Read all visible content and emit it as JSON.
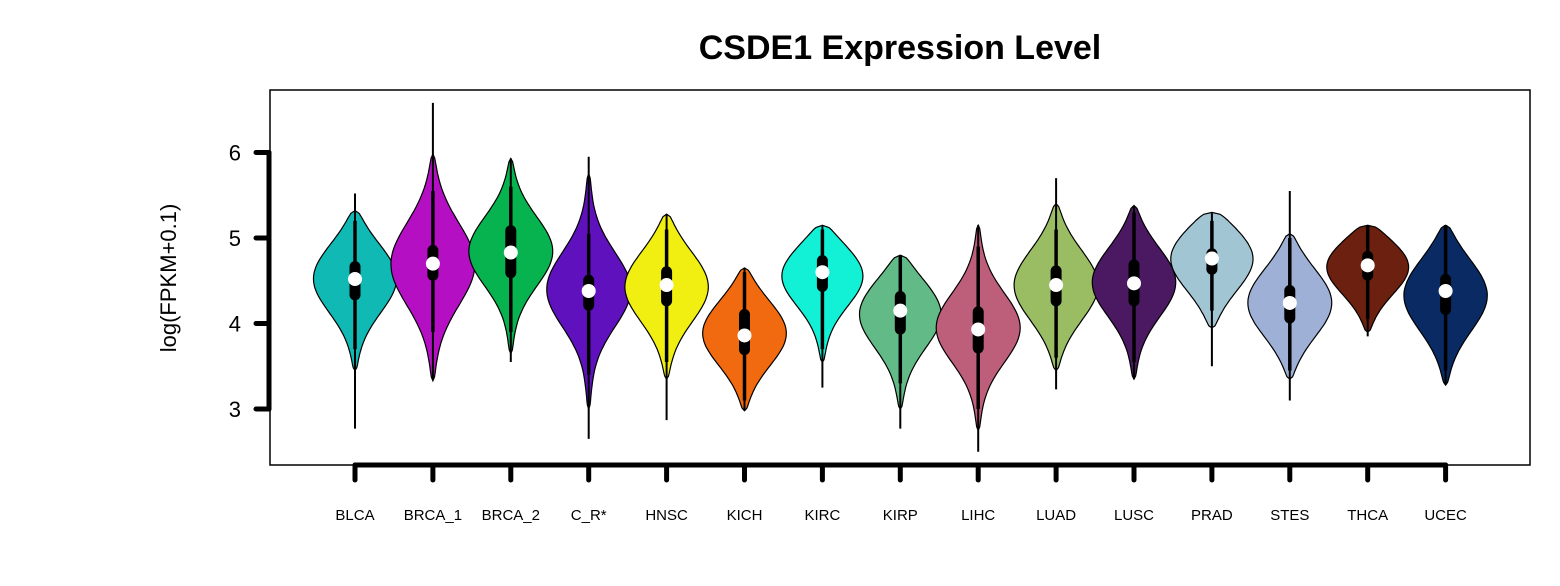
{
  "chart_data": {
    "type": "violin",
    "title": "CSDE1 Expression Level",
    "xlabel": "",
    "ylabel": "log(FPKM+0.1)",
    "ylim": [
      2.35,
      6.75
    ],
    "yticks": [
      3,
      4,
      5,
      6
    ],
    "categories": [
      "BLCA",
      "BRCA_1",
      "BRCA_2",
      "C_R*",
      "HNSC",
      "KICH",
      "KIRC",
      "KIRP",
      "LIHC",
      "LUAD",
      "LUSC",
      "PRAD",
      "STES",
      "THCA",
      "UCEC"
    ],
    "series": [
      {
        "category": "BLCA",
        "color": "#10b9b4",
        "min": 2.77,
        "max": 5.52,
        "q1": 4.27,
        "median": 4.52,
        "q3": 4.73,
        "whisker_low": 3.7,
        "whisker_high": 5.2,
        "violin_low": 3.45,
        "violin_high": 5.32,
        "peak": 4.55,
        "peak_halfwidth": 0.42
      },
      {
        "category": "BRCA_1",
        "color": "#b40fc3",
        "min": 3.35,
        "max": 6.58,
        "q1": 4.5,
        "median": 4.7,
        "q3": 4.92,
        "whisker_low": 3.9,
        "whisker_high": 5.55,
        "violin_low": 3.33,
        "violin_high": 5.98,
        "peak": 4.7,
        "peak_halfwidth": 0.5
      },
      {
        "category": "BRCA_2",
        "color": "#07b34f",
        "min": 3.55,
        "max": 5.93,
        "q1": 4.53,
        "median": 4.83,
        "q3": 5.15,
        "whisker_low": 3.9,
        "whisker_high": 5.6,
        "violin_low": 3.65,
        "violin_high": 5.93,
        "peak": 4.85,
        "peak_halfwidth": 0.42
      },
      {
        "category": "C_R*",
        "color": "#5f11bd",
        "min": 2.65,
        "max": 5.95,
        "q1": 4.15,
        "median": 4.38,
        "q3": 4.57,
        "whisker_low": 3.4,
        "whisker_high": 5.05,
        "violin_low": 3.0,
        "violin_high": 5.75,
        "peak": 4.4,
        "peak_halfwidth": 0.45
      },
      {
        "category": "HNSC",
        "color": "#f1ef12",
        "min": 2.87,
        "max": 5.28,
        "q1": 4.2,
        "median": 4.45,
        "q3": 4.67,
        "whisker_low": 3.55,
        "whisker_high": 5.1,
        "violin_low": 3.35,
        "violin_high": 5.28,
        "peak": 4.45,
        "peak_halfwidth": 0.43
      },
      {
        "category": "KICH",
        "color": "#f26a0f",
        "min": 2.98,
        "max": 4.65,
        "q1": 3.63,
        "median": 3.86,
        "q3": 4.17,
        "whisker_low": 3.1,
        "whisker_high": 4.6,
        "violin_low": 2.98,
        "violin_high": 4.65,
        "peak": 3.9,
        "peak_halfwidth": 0.4
      },
      {
        "category": "KIRC",
        "color": "#12f0d5",
        "min": 3.25,
        "max": 5.15,
        "q1": 4.37,
        "median": 4.6,
        "q3": 4.8,
        "whisker_low": 3.7,
        "whisker_high": 5.1,
        "violin_low": 3.55,
        "violin_high": 5.15,
        "peak": 4.6,
        "peak_halfwidth": 0.38
      },
      {
        "category": "KIRP",
        "color": "#62ba86",
        "min": 2.77,
        "max": 4.8,
        "q1": 3.87,
        "median": 4.15,
        "q3": 4.38,
        "whisker_low": 3.3,
        "whisker_high": 4.8,
        "violin_low": 3.0,
        "violin_high": 4.8,
        "peak": 4.15,
        "peak_halfwidth": 0.42
      },
      {
        "category": "LIHC",
        "color": "#bd5e7b",
        "min": 2.5,
        "max": 5.15,
        "q1": 3.65,
        "median": 3.93,
        "q3": 4.2,
        "whisker_low": 3.0,
        "whisker_high": 4.9,
        "violin_low": 2.75,
        "violin_high": 5.15,
        "peak": 3.95,
        "peak_halfwidth": 0.42
      },
      {
        "category": "LUAD",
        "color": "#9abd64",
        "min": 3.23,
        "max": 5.7,
        "q1": 4.2,
        "median": 4.45,
        "q3": 4.68,
        "whisker_low": 3.6,
        "whisker_high": 5.1,
        "violin_low": 3.45,
        "violin_high": 5.4,
        "peak": 4.45,
        "peak_halfwidth": 0.43
      },
      {
        "category": "LUSC",
        "color": "#4b1862",
        "min": 3.35,
        "max": 5.38,
        "q1": 4.2,
        "median": 4.47,
        "q3": 4.75,
        "whisker_low": 3.55,
        "whisker_high": 5.3,
        "violin_low": 3.35,
        "violin_high": 5.38,
        "peak": 4.5,
        "peak_halfwidth": 0.42
      },
      {
        "category": "PRAD",
        "color": "#a2c5d3",
        "min": 3.5,
        "max": 5.3,
        "q1": 4.57,
        "median": 4.76,
        "q3": 4.88,
        "whisker_low": 4.15,
        "whisker_high": 5.2,
        "violin_low": 3.95,
        "violin_high": 5.3,
        "peak": 4.8,
        "peak_halfwidth": 0.41
      },
      {
        "category": "STES",
        "color": "#9fb0d6",
        "min": 3.1,
        "max": 5.55,
        "q1": 4.0,
        "median": 4.24,
        "q3": 4.45,
        "whisker_low": 3.45,
        "whisker_high": 5.0,
        "violin_low": 3.35,
        "violin_high": 5.05,
        "peak": 4.25,
        "peak_halfwidth": 0.42
      },
      {
        "category": "THCA",
        "color": "#6b2010",
        "min": 3.85,
        "max": 5.15,
        "q1": 4.5,
        "median": 4.68,
        "q3": 4.85,
        "whisker_low": 4.05,
        "whisker_high": 5.15,
        "violin_low": 3.9,
        "violin_high": 5.15,
        "peak": 4.7,
        "peak_halfwidth": 0.35
      },
      {
        "category": "UCEC",
        "color": "#092a63",
        "min": 3.28,
        "max": 5.15,
        "q1": 4.1,
        "median": 4.38,
        "q3": 4.58,
        "whisker_low": 3.45,
        "whisker_high": 5.15,
        "violin_low": 3.28,
        "violin_high": 5.15,
        "peak": 4.35,
        "peak_halfwidth": 0.44
      }
    ],
    "grid": false,
    "legend": "none"
  }
}
